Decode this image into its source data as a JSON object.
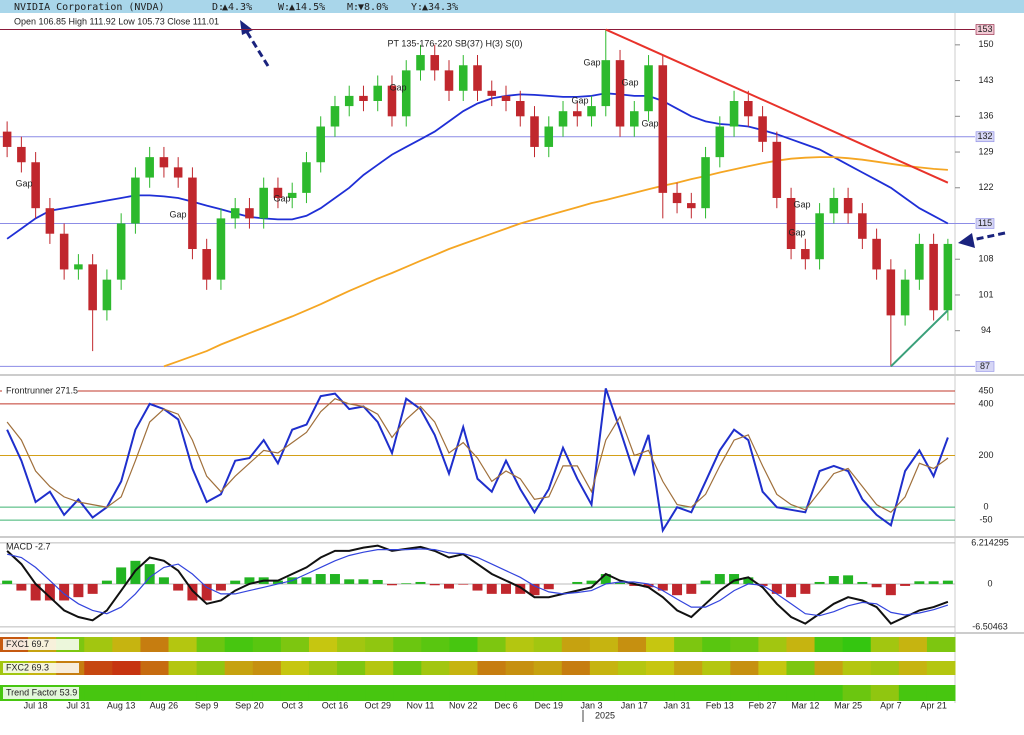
{
  "header": {
    "title": "NVIDIA Corporation (NVDA)",
    "changes": [
      {
        "period": "D:",
        "change": "▲4.3%",
        "color": "#1a8a1a"
      },
      {
        "period": "W:",
        "change": "▲14.5%",
        "color": "#1a8a1a"
      },
      {
        "period": "M:",
        "change": "▼8.0%",
        "color": "#c81e1e"
      },
      {
        "period": "Y:",
        "change": "▲34.3%",
        "color": "#1a8a1a"
      }
    ],
    "ohlc": "Open 106.85 High 111.92 Low 105.73 Close 111.01"
  },
  "chart_data": [
    {
      "type": "candlestick",
      "categories": [
        null,
        null,
        "Jul 18",
        null,
        null,
        "Jul 31",
        null,
        null,
        "Aug 13",
        null,
        null,
        "Aug 26",
        null,
        null,
        "Sep 9",
        null,
        null,
        "Sep 20",
        null,
        null,
        "Oct 3",
        null,
        null,
        "Oct 16",
        null,
        null,
        "Oct 29",
        null,
        null,
        "Nov 11",
        null,
        null,
        "Nov 22",
        null,
        null,
        "Dec 6",
        null,
        null,
        "Dec 19",
        null,
        null,
        "Jan 3",
        null,
        null,
        "Jan 17",
        null,
        null,
        "Jan 31",
        null,
        null,
        "Feb 13",
        null,
        null,
        "Feb 27",
        null,
        null,
        "Mar 12",
        null,
        null,
        "Mar 25",
        null,
        null,
        "Apr 7",
        null,
        null,
        "Apr 21",
        null
      ],
      "year_label": "2025",
      "open": [
        133,
        130,
        127,
        118,
        113,
        106,
        107,
        98,
        104,
        115,
        124,
        128,
        126,
        124,
        110,
        104,
        116,
        118,
        116,
        122,
        120,
        121,
        127,
        134,
        138,
        140,
        139,
        142,
        136,
        145,
        148,
        145,
        141,
        146,
        141,
        140,
        139,
        136,
        130,
        134,
        137,
        136,
        138,
        147,
        134,
        137,
        146,
        121,
        119,
        118,
        128,
        134,
        139,
        136,
        131,
        120,
        110,
        108,
        117,
        120,
        117,
        112,
        106,
        97,
        104,
        111,
        98
      ],
      "high": [
        135,
        132,
        129,
        120,
        115,
        109,
        109,
        106,
        117,
        126,
        130,
        130,
        128,
        126,
        112,
        118,
        120,
        120,
        124,
        124,
        123,
        129,
        136,
        140,
        142,
        142,
        144,
        144,
        147,
        150,
        150,
        147,
        148,
        148,
        143,
        142,
        141,
        138,
        136,
        139,
        139,
        140,
        153,
        149,
        139,
        148,
        148,
        123,
        121,
        130,
        136,
        141,
        141,
        138,
        133,
        122,
        112,
        119,
        122,
        122,
        119,
        114,
        108,
        106,
        113,
        113,
        112
      ],
      "low": [
        128,
        125,
        116,
        111,
        104,
        104,
        90,
        96,
        102,
        113,
        122,
        124,
        122,
        108,
        102,
        102,
        114,
        114,
        114,
        118,
        118,
        119,
        125,
        132,
        136,
        137,
        137,
        134,
        134,
        143,
        143,
        139,
        139,
        139,
        138,
        137,
        134,
        128,
        128,
        132,
        134,
        134,
        136,
        132,
        132,
        135,
        116,
        117,
        116,
        116,
        126,
        132,
        134,
        129,
        118,
        108,
        106,
        106,
        115,
        115,
        110,
        104,
        87,
        95,
        102,
        96,
        96
      ],
      "close": [
        130,
        127,
        118,
        113,
        106,
        107,
        98,
        104,
        115,
        124,
        128,
        126,
        124,
        110,
        104,
        116,
        118,
        116,
        122,
        120,
        121,
        127,
        134,
        138,
        140,
        139,
        142,
        136,
        145,
        148,
        145,
        141,
        146,
        141,
        140,
        139,
        136,
        130,
        134,
        137,
        136,
        138,
        147,
        134,
        137,
        146,
        121,
        119,
        118,
        128,
        134,
        139,
        136,
        131,
        120,
        110,
        108,
        117,
        120,
        117,
        112,
        106,
        97,
        104,
        111,
        98,
        111
      ],
      "up_color": "#2db92d",
      "down_color": "#c0272d",
      "lines": [
        {
          "color": "#1f2fd6",
          "values": [
            112,
            114,
            116,
            117.5,
            118,
            118.5,
            119,
            119.5,
            120,
            120.5,
            120.5,
            120.3,
            120,
            119.3,
            118.5,
            117.8,
            117,
            116.3,
            116,
            115.8,
            115.8,
            116.5,
            118,
            120,
            122,
            124.5,
            126.5,
            128.5,
            130,
            131.5,
            133,
            135,
            137,
            138.5,
            139.5,
            140,
            140.3,
            140.2,
            140,
            139.8,
            139.8,
            140,
            140.5,
            140.3,
            140,
            140,
            139,
            137.5,
            136,
            135,
            134.5,
            134.3,
            134,
            133.3,
            132.5,
            131.5,
            130.5,
            129.5,
            128,
            126.5,
            125,
            123.5,
            122,
            120,
            118,
            116.5,
            115
          ]
        },
        {
          "color": "#f5a623",
          "values": [
            null,
            null,
            null,
            null,
            null,
            null,
            null,
            null,
            null,
            null,
            null,
            87,
            88,
            89,
            90,
            91.3,
            92.4,
            93.5,
            94.6,
            95.7,
            96.8,
            98,
            99.2,
            100.5,
            101.8,
            103,
            104.2,
            105.3,
            106.5,
            107.7,
            108.8,
            110,
            111,
            112,
            113,
            114,
            115,
            115.8,
            116.6,
            117.4,
            118.2,
            119,
            119.6,
            120.3,
            121,
            121.7,
            122.4,
            123,
            123.7,
            124.3,
            125,
            125.6,
            126.2,
            126.8,
            127.3,
            127.7,
            127.9,
            128,
            128,
            127.8,
            127.5,
            127.1,
            126.7,
            126.3,
            126,
            125.7,
            125.5
          ]
        }
      ],
      "levels": [
        {
          "value": 153,
          "color": "#8b1a3a",
          "box": "#f2c9d4"
        },
        {
          "value": 132,
          "color": "#8c8ce6",
          "box": "#d6d6f5"
        },
        {
          "value": 115,
          "color": "#8c8ce6",
          "box": "#d6d6f5"
        },
        {
          "value": 87,
          "color": "#8c8ce6",
          "box": "#d6d6f5"
        }
      ],
      "trendlines": [
        {
          "x": [
            42,
            66
          ],
          "values": [
            153,
            123
          ],
          "color": "#e8322a"
        },
        {
          "x": [
            62,
            66
          ],
          "values": [
            87,
            98
          ],
          "color": "#3aa07a"
        }
      ],
      "annotations": [
        {
          "text": "Gap",
          "color": "#c0392b"
        },
        {
          "text": "Gap",
          "color": "#c0392b"
        },
        {
          "text": "Gap",
          "color": "#222"
        },
        {
          "text": "Gap",
          "color": "#222"
        },
        {
          "text": "Gap",
          "color": "#222"
        },
        {
          "text": "Gap",
          "color": "#222"
        },
        {
          "text": "Gap",
          "color": "#222"
        },
        {
          "text": "Gap",
          "color": "#c0392b"
        },
        {
          "text": "Gap",
          "color": "#222"
        },
        {
          "text": "Gap",
          "color": "#222"
        }
      ],
      "note": "PT 135-176-220 SB(37) H(3) S(0)",
      "ylim": [
        86.3,
        153.3
      ],
      "yticks": [
        94,
        101,
        108,
        115,
        122,
        129,
        136,
        143,
        150
      ]
    },
    {
      "type": "line",
      "title": "Frontrunner 271.5",
      "series": [
        {
          "color": "#1f2fcc",
          "values": [
            300,
            180,
            20,
            60,
            -30,
            30,
            -40,
            0,
            100,
            300,
            400,
            380,
            340,
            150,
            20,
            50,
            180,
            190,
            260,
            170,
            300,
            320,
            430,
            440,
            380,
            390,
            330,
            210,
            420,
            380,
            280,
            130,
            310,
            110,
            60,
            180,
            70,
            -20,
            70,
            230,
            110,
            10,
            460,
            300,
            130,
            280,
            -90,
            0,
            -20,
            100,
            220,
            300,
            260,
            60,
            0,
            -10,
            -20,
            140,
            160,
            140,
            30,
            -30,
            -70,
            140,
            220,
            120,
            270
          ]
        },
        {
          "color": "#a0703c",
          "values": [
            330,
            260,
            140,
            80,
            40,
            20,
            10,
            0,
            40,
            180,
            330,
            380,
            360,
            260,
            120,
            60,
            120,
            170,
            220,
            210,
            250,
            290,
            370,
            420,
            400,
            390,
            360,
            270,
            340,
            390,
            330,
            210,
            250,
            190,
            100,
            140,
            110,
            30,
            40,
            160,
            160,
            60,
            260,
            350,
            200,
            220,
            100,
            10,
            0,
            50,
            160,
            260,
            280,
            160,
            50,
            10,
            -10,
            60,
            130,
            150,
            80,
            10,
            -20,
            40,
            170,
            150,
            190
          ]
        }
      ],
      "ylim": [
        -100,
        481
      ],
      "yticks": [
        -50,
        0,
        200,
        400,
        450
      ],
      "tick_colors": [
        "#3cb371",
        "#3cb371",
        "#d4a017",
        "#c0392b",
        "#c0392b"
      ]
    },
    {
      "type": "bar",
      "title": "MACD -2.7",
      "values": [
        0.5,
        -1,
        -2.5,
        -2.5,
        -2.5,
        -2,
        -1.5,
        0.5,
        2.5,
        3.5,
        3,
        1,
        -1,
        -2.5,
        -2.5,
        -1,
        0.5,
        1,
        1,
        0.5,
        1,
        1,
        1.5,
        1.5,
        0.7,
        0.7,
        0.6,
        -0.2,
        0.1,
        0.3,
        -0.2,
        -0.7,
        -0.1,
        -1,
        -1.5,
        -1.5,
        -1.5,
        -1.7,
        -0.8,
        0,
        0.3,
        0.5,
        1.5,
        0.2,
        -0.3,
        -0.5,
        -1,
        -1.7,
        -1.5,
        0.5,
        1.5,
        1.5,
        1,
        -0.3,
        -1.5,
        -2,
        -1.5,
        0.3,
        1.2,
        1.3,
        0.3,
        -0.5,
        -1.7,
        -0.3,
        0.4,
        0.4,
        0.5
      ],
      "up_color": "#22b422",
      "down_color": "#c0272d",
      "lines": [
        {
          "color": "#111111",
          "values": [
            5,
            3,
            0,
            -2,
            -4,
            -5,
            -5.5,
            -4,
            -1,
            2,
            4,
            3.5,
            2,
            -1,
            -3,
            -2.5,
            -1,
            0,
            0.5,
            0.5,
            1.5,
            2.5,
            4,
            5,
            5,
            5.5,
            5.8,
            5,
            5.3,
            5.6,
            5,
            4,
            4.5,
            3,
            1.5,
            0.5,
            -0.5,
            -2,
            -2,
            -1.5,
            -1,
            -0.5,
            1.5,
            0.5,
            0,
            -0.5,
            -2,
            -4,
            -5,
            -3,
            -1,
            0.5,
            1,
            -0.5,
            -3,
            -5,
            -6,
            -4.5,
            -3,
            -2,
            -2.5,
            -3.5,
            -6,
            -5,
            -4,
            -3.5,
            -2.7
          ]
        },
        {
          "color": "#3344dd",
          "values": [
            4.5,
            4,
            2.5,
            0.5,
            -1.5,
            -3,
            -4,
            -4.5,
            -3.5,
            -1.5,
            1,
            2.5,
            3,
            1.5,
            -0.5,
            -1.5,
            -1.5,
            -1,
            -0.5,
            0,
            0.5,
            1.5,
            2.5,
            3.5,
            4.3,
            4.8,
            5.2,
            5.2,
            5.2,
            5.3,
            5.2,
            4.7,
            4.6,
            4,
            3,
            2,
            1,
            -0.3,
            -1.2,
            -1.5,
            -1.3,
            -1,
            0,
            0.3,
            0.3,
            0,
            -1,
            -2.3,
            -3.5,
            -3.5,
            -2.5,
            -1,
            0,
            -0.2,
            -1.5,
            -3,
            -4.5,
            -4.8,
            -4.2,
            -3.3,
            -2.8,
            -3,
            -4.3,
            -4.7,
            -4.4,
            -3.9,
            -3.2
          ]
        }
      ],
      "ylim": [
        -6.97,
        6.5
      ],
      "yticks": [
        6.214295,
        0,
        -6.50463
      ]
    },
    {
      "type": "heatmap",
      "title": "FXC1 69.7",
      "values": [
        20,
        40,
        70,
        60,
        45,
        30,
        55,
        75,
        85,
        80,
        70,
        50,
        60,
        65,
        75,
        80,
        85,
        70,
        55,
        60,
        40,
        45,
        35,
        50,
        70,
        80,
        75,
        60,
        45,
        85,
        90,
        60,
        45,
        70
      ]
    },
    {
      "type": "heatmap",
      "title": "FXC2 69.3",
      "values": [
        60,
        45,
        30,
        15,
        10,
        25,
        55,
        65,
        40,
        35,
        50,
        60,
        70,
        55,
        75,
        60,
        45,
        30,
        35,
        40,
        30,
        45,
        55,
        50,
        40,
        55,
        35,
        50,
        70,
        40,
        55,
        60,
        45,
        55
      ]
    },
    {
      "type": "heatmap",
      "title": "Trend Factor 53.9",
      "values": [
        85,
        85,
        85,
        85,
        85,
        85,
        85,
        85,
        85,
        85,
        85,
        85,
        85,
        85,
        85,
        85,
        85,
        85,
        85,
        85,
        85,
        85,
        85,
        85,
        85,
        85,
        85,
        85,
        85,
        85,
        75,
        65,
        85,
        85
      ]
    }
  ]
}
